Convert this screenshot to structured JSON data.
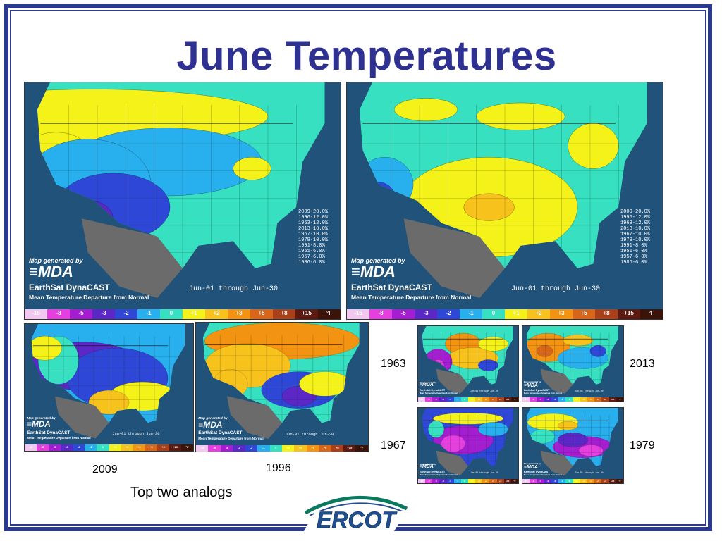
{
  "page": {
    "title": "June Temperatures",
    "note": "Top two analogs",
    "colors": {
      "frame": "#2b3a8f",
      "title": "#2e3192",
      "ocean": "#20527a",
      "land_out": "#6b6b6b",
      "border": "#111111"
    }
  },
  "legend": {
    "units": "°F",
    "steps": [
      {
        "label": "-15",
        "color": "#f2c8f0"
      },
      {
        "label": "-8",
        "color": "#e53fe0"
      },
      {
        "label": "-5",
        "color": "#a51dd0"
      },
      {
        "label": "-3",
        "color": "#5b27c7"
      },
      {
        "label": "-2",
        "color": "#2e47d6"
      },
      {
        "label": "-1",
        "color": "#28b0ee"
      },
      {
        "label": "0",
        "color": "#36e0c0"
      },
      {
        "label": "+1",
        "color": "#f5f21a"
      },
      {
        "label": "+2",
        "color": "#f7c21c"
      },
      {
        "label": "+3",
        "color": "#f29312"
      },
      {
        "label": "+5",
        "color": "#d8661a"
      },
      {
        "label": "+8",
        "color": "#a8401a"
      },
      {
        "label": "+15",
        "color": "#5c1a10"
      },
      {
        "label": "°F",
        "color": "#3c1309"
      }
    ]
  },
  "maps": {
    "credit_generated": "Map generated by",
    "credit_brand": "MDA",
    "product": "EarthSat DynaCAST",
    "subtitle": "Mean Temperature Departure from Normal",
    "period": "Jun-01 through Jun-30",
    "analogs": [
      "2009-20.0%",
      "1996-12.0%",
      "1963-12.0%",
      "2013-10.0%",
      "1967-10.0%",
      "1979-10.0%",
      "1991-8.0%",
      "1951-6.0%",
      "1957-6.0%",
      "1986-6.0%"
    ],
    "panels": [
      {
        "id": "main-left",
        "year": "",
        "theme": "cool-west"
      },
      {
        "id": "main-right",
        "year": "",
        "theme": "warm-south"
      },
      {
        "id": "analog-2009",
        "year": "2009",
        "theme": "cool-central"
      },
      {
        "id": "analog-1996",
        "year": "1996",
        "theme": "warm-north"
      },
      {
        "id": "analog-1963",
        "year": "1963",
        "theme": "warm-plains"
      },
      {
        "id": "analog-2013",
        "year": "2013",
        "theme": "warm-west"
      },
      {
        "id": "analog-1967",
        "year": "1967",
        "theme": "cold"
      },
      {
        "id": "analog-1979",
        "year": "1979",
        "theme": "cold-east"
      }
    ]
  },
  "logo": {
    "text": "ERCOT",
    "color": "#1f4f8f",
    "accent": "#0a7a5e"
  }
}
